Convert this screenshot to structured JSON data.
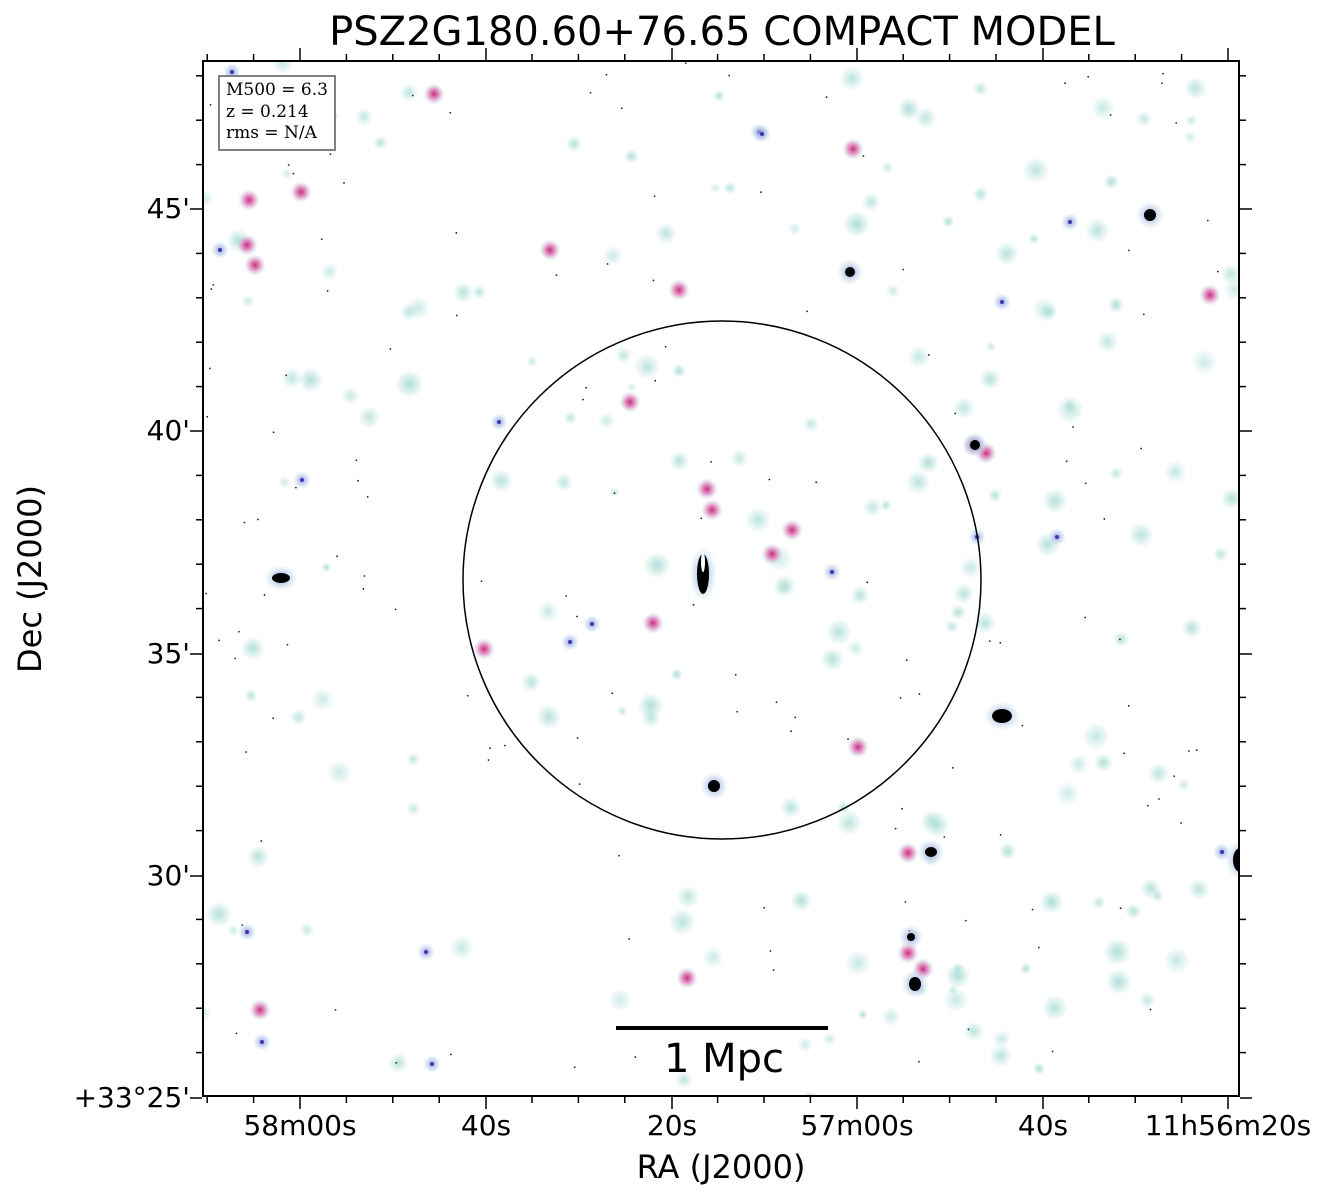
{
  "title": "PSZ2G180.60+76.65 COMPACT MODEL",
  "info_box": {
    "line1": "M500 = 6.3",
    "line2": "z = 0.214",
    "line3": "rms = N/A"
  },
  "scale_bar": {
    "label": "1 Mpc"
  },
  "axes": {
    "xlabel": "RA (J2000)",
    "ylabel": "Dec (J2000)",
    "x_ticks": [
      "58m00s",
      "40s",
      "20s",
      "57m00s",
      "40s",
      "11h56m20s"
    ],
    "y_ticks": [
      "45'",
      "40'",
      "35'",
      "30'",
      "+33°25'"
    ]
  },
  "colors": {
    "source_halo": "#9fd8d0",
    "source_core_pink": "#e07ab8",
    "source_core_blue": "#6a6ad8",
    "source_peak": "#000000",
    "circle": "#000000"
  }
}
